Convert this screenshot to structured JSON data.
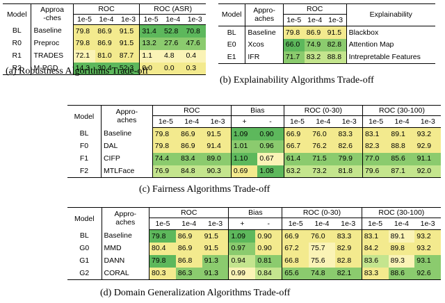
{
  "colors": {
    "dark_green": "#5db85c",
    "green": "#8bcb6e",
    "light_green": "#c4e58e",
    "yellow": "#f3ea8e",
    "light_yellow": "#faf3b6"
  },
  "tableA": {
    "caption": "(a) Robustness Algorithms Trade-off",
    "header": {
      "model": "Model",
      "approaches": [
        "Approa",
        "-ches"
      ],
      "g1": "ROC",
      "g2": "ROC (ASR)",
      "sub": [
        "1e-5",
        "1e-4",
        "1e-3",
        "1e-5",
        "1e-4",
        "1e-3"
      ]
    },
    "rows": [
      {
        "model": "BL",
        "approach": "Baseline",
        "vals": [
          "79.8",
          "86.9",
          "91.5",
          "31.4",
          "52.8",
          "70.8"
        ]
      },
      {
        "model": "R0",
        "approach": "Preproc",
        "vals": [
          "79.8",
          "86.9",
          "91.5",
          "13.2",
          "27.6",
          "47.6"
        ]
      },
      {
        "model": "R1",
        "approach": "TRADES",
        "vals": [
          "72.1",
          "81.0",
          "87.7",
          "1.1",
          "4.8",
          "0.4"
        ]
      },
      {
        "model": "R2",
        "approach": "M-PGD",
        "vals": [
          "14.3",
          "30.4",
          "52.3",
          "0.0",
          "0.0",
          "0.3"
        ]
      }
    ]
  },
  "tableB": {
    "caption": "(b) Explainability Algorithms Trade-off",
    "header": {
      "model": "Model",
      "approaches": [
        "Appro-",
        "aches"
      ],
      "g1": "ROC",
      "g2": "Explainability",
      "sub": [
        "1e-5",
        "1e-4",
        "1e-3"
      ]
    },
    "rows": [
      {
        "model": "BL",
        "approach": "Baseline",
        "vals": [
          "79.8",
          "86.9",
          "91.5"
        ],
        "expl": "Blackbox"
      },
      {
        "model": "E0",
        "approach": "Xcos",
        "vals": [
          "66.0",
          "74.9",
          "82.8"
        ],
        "expl": "Attention Map"
      },
      {
        "model": "E1",
        "approach": "IFR",
        "vals": [
          "71.7",
          "83.2",
          "88.8"
        ],
        "expl": "Intrepretable Features"
      }
    ]
  },
  "tableC": {
    "caption": "(c) Fairness Algorithms Trade-off",
    "header": {
      "model": "Model",
      "approaches": [
        "Appro-",
        "aches"
      ],
      "g1": "ROC",
      "g2": "Bias",
      "g3": "ROC (0-30)",
      "g4": "ROC (30-100)",
      "sub": [
        "1e-5",
        "1e-4",
        "1e-3",
        "+",
        "-",
        "1e-5",
        "1e-4",
        "1e-3",
        "1e-5",
        "1e-4",
        "1e-3"
      ]
    },
    "rows": [
      {
        "model": "BL",
        "approach": "Baseline",
        "vals": [
          "79.8",
          "86.9",
          "91.5",
          "1.09",
          "0.90",
          "66.9",
          "76.0",
          "83.3",
          "83.1",
          "89.1",
          "93.2"
        ]
      },
      {
        "model": "F0",
        "approach": "DAL",
        "vals": [
          "79.8",
          "86.9",
          "91.4",
          "1.01",
          "0.96",
          "66.7",
          "76.2",
          "82.6",
          "82.3",
          "88.8",
          "92.9"
        ]
      },
      {
        "model": "F1",
        "approach": "CIFP",
        "vals": [
          "74.4",
          "83.4",
          "89.0",
          "1.10",
          "0.67",
          "61.4",
          "71.5",
          "79.9",
          "77.0",
          "85.6",
          "91.1"
        ]
      },
      {
        "model": "F2",
        "approach": "MTLFace",
        "vals": [
          "76.9",
          "84.8",
          "90.3",
          "0.69",
          "1.08",
          "63.2",
          "73.2",
          "81.8",
          "79.6",
          "87.1",
          "92.0"
        ]
      }
    ]
  },
  "tableD": {
    "caption": "(d) Domain Generalization Algorithms Trade-off",
    "header": {
      "model": "Model",
      "approaches": [
        "Appro-",
        "aches"
      ],
      "g1": "ROC",
      "g2": "Bias",
      "g3": "ROC (0-30)",
      "g4": "ROC (30-100)",
      "sub": [
        "1e-5",
        "1e-4",
        "1e-3",
        "+",
        "-",
        "1e-5",
        "1e-4",
        "1e-3",
        "1e-5",
        "1e-4",
        "1e-3"
      ]
    },
    "rows": [
      {
        "model": "BL",
        "approach": "Baseline",
        "vals": [
          "79.8",
          "86.9",
          "91.5",
          "1.09",
          "0.90",
          "66.9",
          "76.0",
          "83.3",
          "83.1",
          "89.1",
          "93.2"
        ]
      },
      {
        "model": "G0",
        "approach": "MMD",
        "vals": [
          "80.4",
          "86.9",
          "91.5",
          "0.97",
          "0.90",
          "67.2",
          "75.7",
          "82.9",
          "84.2",
          "89.8",
          "93.2"
        ]
      },
      {
        "model": "G1",
        "approach": "DANN",
        "vals": [
          "79.8",
          "86.8",
          "91.3",
          "0.94",
          "0.81",
          "66.8",
          "75.6",
          "82.8",
          "83.6",
          "89.3",
          "93.1"
        ]
      },
      {
        "model": "G2",
        "approach": "CORAL",
        "vals": [
          "80.3",
          "86.3",
          "91.3",
          "0.99",
          "0.84",
          "65.6",
          "74.8",
          "82.1",
          "83.3",
          "88.6",
          "92.6"
        ]
      }
    ]
  },
  "shading": {
    "tableA": [
      [
        "yellow",
        "yellow",
        "yellow",
        "dark_green",
        "dark_green",
        "dark_green"
      ],
      [
        "yellow",
        "yellow",
        "yellow",
        "green",
        "green",
        "green"
      ],
      [
        "light_yellow",
        "yellow",
        "yellow",
        "light_yellow",
        "light_yellow",
        "light_yellow"
      ],
      [
        "dark_green",
        "dark_green",
        "dark_green",
        "yellow",
        "yellow",
        "yellow"
      ]
    ],
    "tableB": [
      [
        "yellow",
        "yellow",
        "yellow"
      ],
      [
        "dark_green",
        "green",
        "green"
      ],
      [
        "green",
        "light_green",
        "light_green"
      ]
    ],
    "tableC": [
      [
        "yellow",
        "yellow",
        "yellow",
        "dark_green",
        "dark_green",
        "yellow",
        "yellow",
        "yellow",
        "yellow",
        "yellow",
        "yellow"
      ],
      [
        "yellow",
        "yellow",
        "yellow",
        "green",
        "green",
        "yellow",
        "yellow",
        "yellow",
        "yellow",
        "yellow",
        "yellow"
      ],
      [
        "green",
        "green",
        "green",
        "dark_green",
        "light_yellow",
        "green",
        "green",
        "green",
        "green",
        "green",
        "green"
      ],
      [
        "light_green",
        "light_green",
        "light_green",
        "yellow",
        "dark_green",
        "light_green",
        "light_green",
        "light_green",
        "light_green",
        "light_green",
        "light_green"
      ]
    ],
    "tableD": [
      [
        "dark_green",
        "yellow",
        "yellow",
        "dark_green",
        "yellow",
        "yellow",
        "yellow",
        "yellow",
        "yellow",
        "light_yellow",
        "yellow"
      ],
      [
        "yellow",
        "yellow",
        "yellow",
        "green",
        "yellow",
        "yellow",
        "light_yellow",
        "yellow",
        "yellow",
        "yellow",
        "yellow"
      ],
      [
        "dark_green",
        "yellow",
        "green",
        "light_green",
        "green",
        "yellow",
        "light_yellow",
        "yellow",
        "light_green",
        "light_yellow",
        "green"
      ],
      [
        "yellow",
        "green",
        "green",
        "light_yellow",
        "light_green",
        "green",
        "green",
        "green",
        "yellow",
        "green",
        "green"
      ]
    ]
  }
}
